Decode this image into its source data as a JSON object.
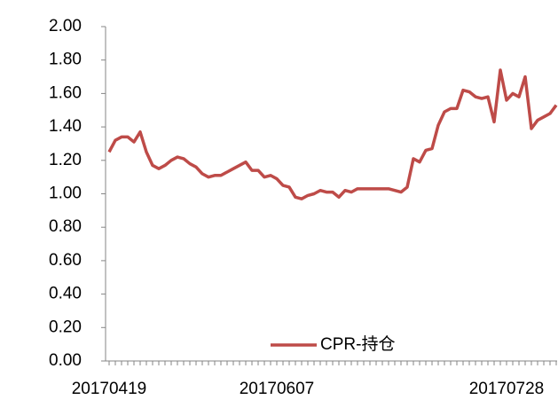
{
  "chart_data": {
    "type": "line",
    "categories": [
      "20170419",
      null,
      null,
      null,
      null,
      null,
      null,
      null,
      null,
      null,
      null,
      null,
      null,
      null,
      null,
      null,
      null,
      null,
      null,
      null,
      null,
      null,
      null,
      null,
      null,
      null,
      null,
      "20170607",
      null,
      null,
      null,
      null,
      null,
      null,
      null,
      null,
      null,
      null,
      null,
      null,
      null,
      null,
      null,
      null,
      null,
      null,
      null,
      null,
      null,
      null,
      null,
      null,
      null,
      null,
      null,
      null,
      null,
      null,
      null,
      null,
      null,
      null,
      null,
      null,
      "20170728",
      null,
      null,
      null,
      null,
      null,
      null,
      null,
      null
    ],
    "series": [
      {
        "name": "CPR-持仓",
        "color": "#be4b48",
        "values": [
          1.25,
          1.32,
          1.34,
          1.34,
          1.31,
          1.37,
          1.25,
          1.17,
          1.15,
          1.17,
          1.2,
          1.22,
          1.21,
          1.18,
          1.16,
          1.12,
          1.1,
          1.11,
          1.11,
          1.13,
          1.15,
          1.17,
          1.19,
          1.14,
          1.14,
          1.1,
          1.11,
          1.09,
          1.05,
          1.04,
          0.98,
          0.97,
          0.99,
          1.0,
          1.02,
          1.01,
          1.01,
          0.98,
          1.02,
          1.01,
          1.03,
          1.03,
          1.03,
          1.03,
          1.03,
          1.03,
          1.02,
          1.01,
          1.04,
          1.21,
          1.19,
          1.26,
          1.27,
          1.41,
          1.49,
          1.51,
          1.51,
          1.62,
          1.61,
          1.58,
          1.57,
          1.58,
          1.43,
          1.74,
          1.56,
          1.6,
          1.58,
          1.7,
          1.39,
          1.44,
          1.46,
          1.48,
          1.53
        ]
      }
    ],
    "ylim": [
      0,
      2
    ],
    "yticks": [
      {
        "value": 0,
        "label": "0.00"
      },
      {
        "value": 0.2,
        "label": "0.20"
      },
      {
        "value": 0.4,
        "label": "0.40"
      },
      {
        "value": 0.6,
        "label": "0.60"
      },
      {
        "value": 0.8,
        "label": "0.80"
      },
      {
        "value": 1,
        "label": "1.00"
      },
      {
        "value": 1.2,
        "label": "1.20"
      },
      {
        "value": 1.4,
        "label": "1.40"
      },
      {
        "value": 1.6,
        "label": "1.60"
      },
      {
        "value": 1.8,
        "label": "1.80"
      },
      {
        "value": 2,
        "label": "2.00"
      }
    ],
    "grid": false,
    "legend": "bottom"
  }
}
